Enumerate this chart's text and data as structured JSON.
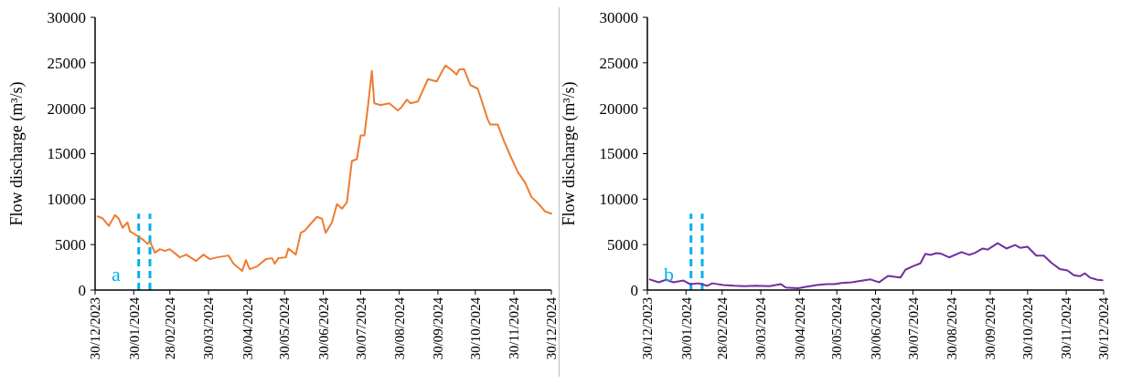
{
  "chart_data": [
    {
      "type": "line",
      "ylabel": "Flow discharge (m³/s)",
      "annotations": [
        "a"
      ],
      "xlim": [
        "2023-12-30",
        "2024-12-30"
      ],
      "xticks": [
        {
          "value": "2023-12-30",
          "label": "30/12/2023"
        },
        {
          "value": "2024-01-30",
          "label": "30/01/2024"
        },
        {
          "value": "2024-02-28",
          "label": "28/02/2024"
        },
        {
          "value": "2024-03-30",
          "label": "30/03/2024"
        },
        {
          "value": "2024-04-30",
          "label": "30/04/2024"
        },
        {
          "value": "2024-05-30",
          "label": "30/05/2024"
        },
        {
          "value": "2024-06-30",
          "label": "30/06/2024"
        },
        {
          "value": "2024-07-30",
          "label": "30/07/2024"
        },
        {
          "value": "2024-08-30",
          "label": "30/08/2024"
        },
        {
          "value": "2024-09-30",
          "label": "30/09/2024"
        },
        {
          "value": "2024-10-30",
          "label": "30/10/2024"
        },
        {
          "value": "2024-11-30",
          "label": "30/11/2024"
        },
        {
          "value": "2024-12-30",
          "label": "30/12/2024"
        }
      ],
      "ylim": [
        0,
        30000
      ],
      "yticks": [
        0,
        5000,
        10000,
        15000,
        20000,
        25000,
        30000
      ],
      "ref_lines": [
        {
          "axis": "x",
          "value": "2024-02-03",
          "color": "#00b0f0",
          "line_style": "dashed"
        },
        {
          "axis": "x",
          "value": "2024-02-12",
          "color": "#00b0f0",
          "line_style": "dashed"
        }
      ],
      "series": [
        {
          "color": "#ed7d31",
          "x": [
            "2024-01-01",
            "2024-01-05",
            "2024-01-10",
            "2024-01-15",
            "2024-01-18",
            "2024-01-21",
            "2024-01-25",
            "2024-01-27",
            "2024-02-03",
            "2024-02-07",
            "2024-02-10",
            "2024-02-12",
            "2024-02-16",
            "2024-02-20",
            "2024-02-24",
            "2024-02-28",
            "2024-03-07",
            "2024-03-12",
            "2024-03-20",
            "2024-03-26",
            "2024-03-31",
            "2024-04-06",
            "2024-04-15",
            "2024-04-19",
            "2024-04-26",
            "2024-04-29",
            "2024-05-02",
            "2024-05-08",
            "2024-05-15",
            "2024-05-20",
            "2024-05-22",
            "2024-05-25",
            "2024-05-31",
            "2024-06-02",
            "2024-06-08",
            "2024-06-12",
            "2024-06-15",
            "2024-06-21",
            "2024-06-25",
            "2024-06-29",
            "2024-07-02",
            "2024-07-07",
            "2024-07-11",
            "2024-07-15",
            "2024-07-19",
            "2024-07-23",
            "2024-07-27",
            "2024-07-30",
            "2024-08-02",
            "2024-08-05",
            "2024-08-08",
            "2024-08-10",
            "2024-08-15",
            "2024-08-22",
            "2024-08-29",
            "2024-09-01",
            "2024-09-05",
            "2024-09-08",
            "2024-09-14",
            "2024-09-22",
            "2024-09-29",
            "2024-10-06",
            "2024-10-11",
            "2024-10-15",
            "2024-10-17",
            "2024-10-21",
            "2024-10-26",
            "2024-11-01",
            "2024-11-09",
            "2024-11-11",
            "2024-11-17",
            "2024-11-22",
            "2024-11-27",
            "2024-12-03",
            "2024-12-09",
            "2024-12-14",
            "2024-12-20",
            "2024-12-25",
            "2024-12-30"
          ],
          "values": [
            8100,
            7900,
            7050,
            8250,
            7850,
            6850,
            7450,
            6450,
            5870,
            5480,
            5080,
            5350,
            4100,
            4500,
            4300,
            4500,
            3600,
            3900,
            3200,
            3900,
            3400,
            3600,
            3800,
            2900,
            2100,
            3300,
            2300,
            2600,
            3400,
            3500,
            2900,
            3500,
            3600,
            4560,
            3900,
            6300,
            6500,
            7450,
            8050,
            7850,
            6300,
            7450,
            9450,
            8950,
            9650,
            14200,
            14400,
            17000,
            17000,
            20350,
            24100,
            20550,
            20350,
            20550,
            19750,
            20150,
            20950,
            20550,
            20750,
            23200,
            22950,
            24700,
            24200,
            23700,
            24250,
            24300,
            22550,
            22150,
            18750,
            18200,
            18200,
            16400,
            14800,
            13000,
            11800,
            10250,
            9450,
            8650,
            8400
          ]
        }
      ]
    },
    {
      "type": "line",
      "ylabel": "Flow discharge (m³/s)",
      "annotations": [
        "b"
      ],
      "xlim": [
        "2023-12-30",
        "2024-12-30"
      ],
      "xticks": [
        {
          "value": "2023-12-30",
          "label": "30/12/2023"
        },
        {
          "value": "2024-01-30",
          "label": "30/01/2024"
        },
        {
          "value": "2024-02-28",
          "label": "28/02/2024"
        },
        {
          "value": "2024-03-30",
          "label": "30/03/2024"
        },
        {
          "value": "2024-04-30",
          "label": "30/04/2024"
        },
        {
          "value": "2024-05-30",
          "label": "30/05/2024"
        },
        {
          "value": "2024-06-30",
          "label": "30/06/2024"
        },
        {
          "value": "2024-07-30",
          "label": "30/07/2024"
        },
        {
          "value": "2024-08-30",
          "label": "30/08/2024"
        },
        {
          "value": "2024-09-30",
          "label": "30/09/2024"
        },
        {
          "value": "2024-10-30",
          "label": "30/10/2024"
        },
        {
          "value": "2024-11-30",
          "label": "30/11/2024"
        },
        {
          "value": "2024-12-30",
          "label": "30/12/2024"
        }
      ],
      "ylim": [
        0,
        30000
      ],
      "yticks": [
        0,
        5000,
        10000,
        15000,
        20000,
        25000,
        30000
      ],
      "ref_lines": [
        {
          "axis": "x",
          "value": "2024-02-03",
          "color": "#00b0f0",
          "line_style": "dashed"
        },
        {
          "axis": "x",
          "value": "2024-02-12",
          "color": "#00b0f0",
          "line_style": "dashed"
        }
      ],
      "series": [
        {
          "color": "#7030a0",
          "x": [
            "2024-01-01",
            "2024-01-08",
            "2024-01-14",
            "2024-01-20",
            "2024-01-28",
            "2024-02-02",
            "2024-02-09",
            "2024-02-16",
            "2024-02-20",
            "2024-02-29",
            "2024-03-09",
            "2024-03-17",
            "2024-03-26",
            "2024-04-06",
            "2024-04-15",
            "2024-04-19",
            "2024-04-29",
            "2024-05-05",
            "2024-05-14",
            "2024-05-22",
            "2024-05-28",
            "2024-06-03",
            "2024-06-11",
            "2024-06-20",
            "2024-06-26",
            "2024-07-03",
            "2024-07-10",
            "2024-07-20",
            "2024-07-24",
            "2024-07-30",
            "2024-08-05",
            "2024-08-09",
            "2024-08-13",
            "2024-08-18",
            "2024-08-22",
            "2024-08-28",
            "2024-09-07",
            "2024-09-13",
            "2024-09-18",
            "2024-09-24",
            "2024-09-28",
            "2024-10-06",
            "2024-10-13",
            "2024-10-20",
            "2024-10-24",
            "2024-10-30",
            "2024-11-06",
            "2024-11-12",
            "2024-11-18",
            "2024-11-25",
            "2024-12-01",
            "2024-12-06",
            "2024-12-11",
            "2024-12-15",
            "2024-12-19",
            "2024-12-25",
            "2024-12-29"
          ],
          "values": [
            1170,
            860,
            1130,
            860,
            1050,
            660,
            740,
            470,
            740,
            550,
            470,
            430,
            470,
            430,
            660,
            270,
            200,
            350,
            550,
            660,
            660,
            780,
            860,
            1050,
            1170,
            860,
            1560,
            1370,
            2230,
            2620,
            2930,
            3980,
            3870,
            4060,
            3980,
            3590,
            4180,
            3870,
            4100,
            4570,
            4450,
            5160,
            4570,
            4960,
            4650,
            4770,
            3790,
            3790,
            3010,
            2300,
            2150,
            1640,
            1520,
            1840,
            1370,
            1130,
            1090
          ]
        }
      ]
    }
  ]
}
